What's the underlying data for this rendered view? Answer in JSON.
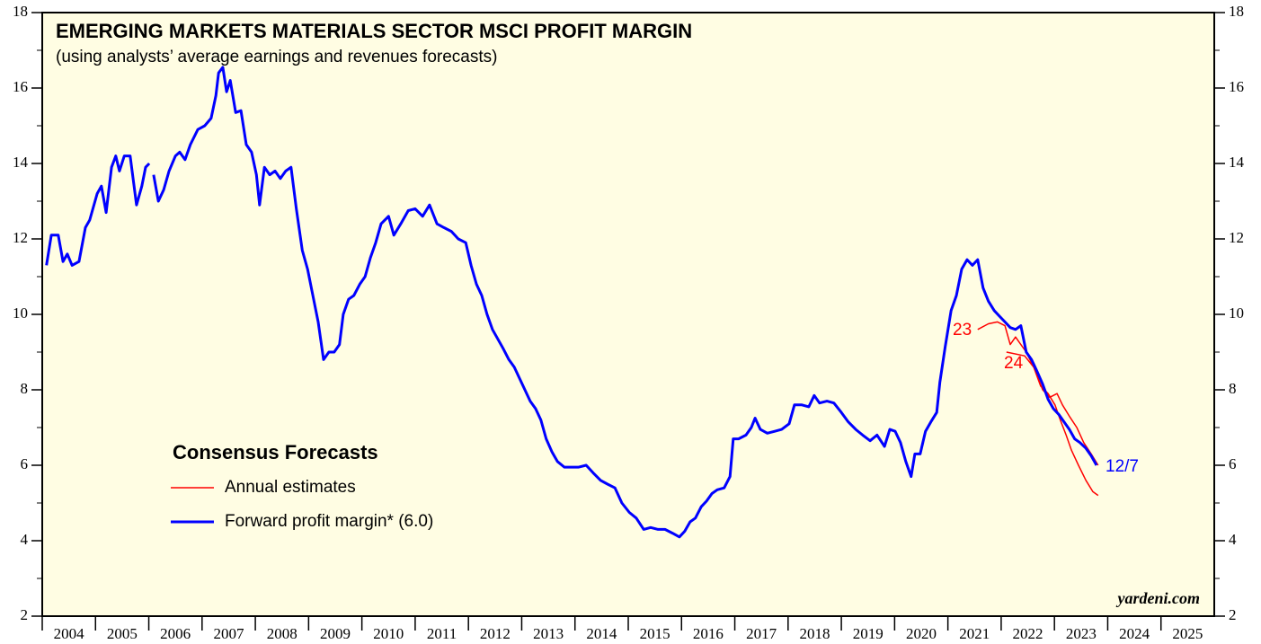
{
  "chart_data": {
    "type": "line",
    "title": "EMERGING MARKETS MATERIALS SECTOR MSCI PROFIT MARGIN",
    "subtitle": "(using analysts’ average earnings and revenues forecasts)",
    "legend_title": "Consensus Forecasts",
    "source": "yardeni.com",
    "annotations": [
      "23",
      "24",
      "12/7"
    ],
    "xlim": [
      2004,
      2026
    ],
    "xticks": [
      {
        "value": 2004,
        "label": "2004"
      },
      {
        "value": 2005,
        "label": "2005"
      },
      {
        "value": 2006,
        "label": "2006"
      },
      {
        "value": 2007,
        "label": "2007"
      },
      {
        "value": 2008,
        "label": "2008"
      },
      {
        "value": 2009,
        "label": "2009"
      },
      {
        "value": 2010,
        "label": "2010"
      },
      {
        "value": 2011,
        "label": "2011"
      },
      {
        "value": 2012,
        "label": "2012"
      },
      {
        "value": 2013,
        "label": "2013"
      },
      {
        "value": 2014,
        "label": "2014"
      },
      {
        "value": 2015,
        "label": "2015"
      },
      {
        "value": 2016,
        "label": "2016"
      },
      {
        "value": 2017,
        "label": "2017"
      },
      {
        "value": 2018,
        "label": "2018"
      },
      {
        "value": 2019,
        "label": "2019"
      },
      {
        "value": 2020,
        "label": "2020"
      },
      {
        "value": 2021,
        "label": "2021"
      },
      {
        "value": 2022,
        "label": "2022"
      },
      {
        "value": 2023,
        "label": "2023"
      },
      {
        "value": 2024,
        "label": "2024"
      },
      {
        "value": 2025,
        "label": "2025"
      }
    ],
    "ylim": [
      2,
      18
    ],
    "yticks": [
      2,
      4,
      6,
      8,
      10,
      12,
      14,
      16,
      18
    ],
    "yminor_ticks": [
      3,
      5,
      7,
      9,
      11,
      13,
      15,
      17
    ],
    "y2lim": [
      2,
      18
    ],
    "y2ticks": [
      2,
      4,
      6,
      8,
      10,
      12,
      14,
      16,
      18
    ],
    "background": "#fffde3",
    "series": [
      {
        "name": "Annual estimates",
        "color": "#ff0000",
        "x": [
          2021.56,
          2021.76,
          2021.93,
          2022.07,
          2022.17,
          2022.27,
          2022.37,
          2022.47,
          2022.61,
          2022.74,
          2022.88,
          2023.01,
          2023.11,
          2023.22,
          2023.32,
          2023.45,
          2023.59,
          2023.72,
          2023.82,
          null,
          2022.1,
          2022.44,
          2022.61,
          2022.78,
          2022.91,
          2023.05,
          2023.15,
          2023.28,
          2023.42,
          2023.55,
          2023.69,
          2023.82
        ],
        "values": [
          9.6,
          9.75,
          9.8,
          9.7,
          9.2,
          9.4,
          9.2,
          9.0,
          8.6,
          8.1,
          7.9,
          7.6,
          7.2,
          6.8,
          6.4,
          6.0,
          5.6,
          5.3,
          5.2,
          null,
          9.0,
          8.9,
          8.6,
          8.0,
          7.8,
          7.9,
          7.6,
          7.3,
          7.0,
          6.6,
          6.3,
          6.0
        ]
      },
      {
        "name": "Forward profit margin* (6.0)",
        "color": "#0000ff",
        "x": [
          2004.08,
          2004.17,
          2004.3,
          2004.39,
          2004.47,
          2004.56,
          2004.69,
          2004.81,
          2004.89,
          2005.03,
          2005.11,
          2005.2,
          2005.3,
          2005.38,
          2005.45,
          2005.54,
          2005.65,
          2005.77,
          2005.87,
          2005.94,
          2006.01,
          null,
          2006.09,
          2006.18,
          2006.28,
          2006.38,
          2006.5,
          2006.58,
          2006.68,
          2006.78,
          2006.92,
          2007.05,
          2007.17,
          2007.26,
          2007.31,
          2007.39,
          2007.46,
          2007.53,
          2007.63,
          2007.73,
          2007.83,
          2007.93,
          2008.02,
          2008.08,
          2008.17,
          2008.27,
          2008.37,
          2008.47,
          2008.57,
          2008.67,
          2008.77,
          2008.88,
          2008.98,
          2009.08,
          2009.18,
          2009.28,
          2009.38,
          2009.48,
          2009.58,
          2009.65,
          2009.75,
          2009.85,
          2009.96,
          2010.06,
          2010.16,
          2010.26,
          2010.36,
          2010.5,
          2010.6,
          2010.73,
          2010.87,
          2011.0,
          2011.14,
          2011.27,
          2011.41,
          2011.54,
          2011.68,
          2011.81,
          2011.95,
          2012.05,
          2012.15,
          2012.25,
          2012.35,
          2012.45,
          2012.55,
          2012.65,
          2012.76,
          2012.86,
          2012.96,
          2013.06,
          2013.16,
          2013.26,
          2013.36,
          2013.46,
          2013.57,
          2013.67,
          2013.8,
          2013.94,
          2014.07,
          2014.21,
          2014.34,
          2014.48,
          2014.61,
          2014.75,
          2014.88,
          2015.02,
          2015.15,
          2015.29,
          2015.42,
          2015.56,
          2015.69,
          2015.83,
          2015.96,
          2016.06,
          2016.16,
          2016.26,
          2016.37,
          2016.47,
          2016.57,
          2016.67,
          2016.8,
          2016.91,
          2016.97,
          2017.07,
          2017.21,
          2017.31,
          2017.38,
          2017.48,
          2017.61,
          2017.75,
          2017.88,
          2018.02,
          2018.12,
          2018.26,
          2018.39,
          2018.49,
          2018.59,
          2018.73,
          2018.86,
          2019.0,
          2019.13,
          2019.27,
          2019.4,
          2019.54,
          2019.67,
          2019.81,
          2019.91,
          2020.01,
          2020.11,
          2020.21,
          2020.31,
          2020.38,
          2020.48,
          2020.58,
          2020.68,
          2020.79,
          2020.85,
          2020.95,
          2021.06,
          2021.16,
          2021.26,
          2021.36,
          2021.46,
          2021.56,
          2021.66,
          2021.76,
          2021.87,
          2021.97,
          2022.07,
          2022.17,
          2022.27,
          2022.37,
          2022.47,
          2022.57,
          2022.67,
          2022.78,
          2022.88,
          2022.98,
          2023.08,
          2023.18,
          2023.28,
          2023.38,
          2023.48,
          2023.59,
          2023.69,
          2023.79
        ],
        "values": [
          11.3,
          12.1,
          12.1,
          11.4,
          11.6,
          11.3,
          11.4,
          12.3,
          12.5,
          13.2,
          13.4,
          12.7,
          13.9,
          14.2,
          13.8,
          14.2,
          14.2,
          12.9,
          13.4,
          13.9,
          14.0,
          null,
          13.7,
          13.0,
          13.3,
          13.8,
          14.2,
          14.3,
          14.1,
          14.5,
          14.9,
          15.0,
          15.2,
          15.8,
          16.4,
          16.55,
          15.9,
          16.2,
          15.35,
          15.4,
          14.5,
          14.3,
          13.7,
          12.9,
          13.9,
          13.7,
          13.8,
          13.6,
          13.8,
          13.9,
          12.8,
          11.7,
          11.2,
          10.5,
          9.8,
          8.8,
          9.0,
          9.0,
          9.2,
          10.0,
          10.4,
          10.5,
          10.8,
          11.0,
          11.5,
          11.9,
          12.4,
          12.6,
          12.1,
          12.4,
          12.75,
          12.8,
          12.6,
          12.9,
          12.4,
          12.3,
          12.2,
          12.0,
          11.9,
          11.3,
          10.8,
          10.5,
          10.0,
          9.6,
          9.35,
          9.1,
          8.8,
          8.6,
          8.3,
          8.0,
          7.7,
          7.5,
          7.2,
          6.7,
          6.35,
          6.1,
          5.95,
          5.95,
          5.95,
          6.0,
          5.8,
          5.6,
          5.5,
          5.4,
          5.0,
          4.75,
          4.6,
          4.3,
          4.35,
          4.3,
          4.3,
          4.2,
          4.1,
          4.25,
          4.5,
          4.6,
          4.9,
          5.05,
          5.25,
          5.35,
          5.4,
          5.7,
          6.7,
          6.7,
          6.8,
          7.0,
          7.25,
          6.95,
          6.85,
          6.9,
          6.95,
          7.1,
          7.6,
          7.6,
          7.55,
          7.85,
          7.65,
          7.7,
          7.65,
          7.4,
          7.15,
          6.95,
          6.8,
          6.65,
          6.8,
          6.5,
          6.95,
          6.9,
          6.6,
          6.1,
          5.7,
          6.3,
          6.3,
          6.9,
          7.15,
          7.4,
          8.2,
          9.15,
          10.1,
          10.5,
          11.2,
          11.45,
          11.3,
          11.45,
          10.7,
          10.35,
          10.1,
          9.95,
          9.8,
          9.65,
          9.6,
          9.7,
          9.0,
          8.8,
          8.5,
          8.15,
          7.75,
          7.5,
          7.35,
          7.15,
          6.95,
          6.7,
          6.6,
          6.45,
          6.25,
          6.0
        ]
      }
    ]
  }
}
